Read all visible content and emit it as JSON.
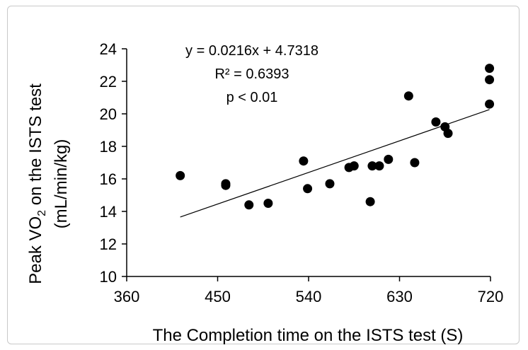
{
  "chart_data": {
    "type": "scatter",
    "title": "",
    "xlabel": "The Completion time  on the ISTS test (S)",
    "ylabel_line1_prefix": "Peak VO",
    "ylabel_line1_sub": "2",
    "ylabel_line1_suffix": " on the ISTS test",
    "ylabel_line2": "(mL/min/kg)",
    "xlim": [
      360,
      720
    ],
    "ylim": [
      10,
      24
    ],
    "xticks": [
      360,
      450,
      540,
      630,
      720
    ],
    "yticks": [
      10,
      12,
      14,
      16,
      18,
      20,
      22,
      24
    ],
    "points": [
      {
        "x": 413,
        "y": 16.2
      },
      {
        "x": 458,
        "y": 15.7
      },
      {
        "x": 458,
        "y": 15.6
      },
      {
        "x": 481,
        "y": 14.4
      },
      {
        "x": 500,
        "y": 14.5
      },
      {
        "x": 535,
        "y": 17.1
      },
      {
        "x": 539,
        "y": 15.4
      },
      {
        "x": 561,
        "y": 15.7
      },
      {
        "x": 580,
        "y": 16.7
      },
      {
        "x": 585,
        "y": 16.8
      },
      {
        "x": 601,
        "y": 14.6
      },
      {
        "x": 603,
        "y": 16.8
      },
      {
        "x": 610,
        "y": 16.8
      },
      {
        "x": 619,
        "y": 17.2
      },
      {
        "x": 639,
        "y": 21.1
      },
      {
        "x": 645,
        "y": 17.0
      },
      {
        "x": 666,
        "y": 19.5
      },
      {
        "x": 675,
        "y": 19.2
      },
      {
        "x": 678,
        "y": 18.8
      },
      {
        "x": 719,
        "y": 22.8
      },
      {
        "x": 719,
        "y": 22.1
      },
      {
        "x": 719,
        "y": 20.6
      }
    ],
    "trendline": {
      "slope": 0.0216,
      "intercept": 4.7318,
      "x_start": 413,
      "x_end": 719
    },
    "annotations": [
      "y = 0.0216x + 4.7318",
      "R² = 0.6393",
      "p < 0.01"
    ],
    "grid": false,
    "legend": "none"
  }
}
